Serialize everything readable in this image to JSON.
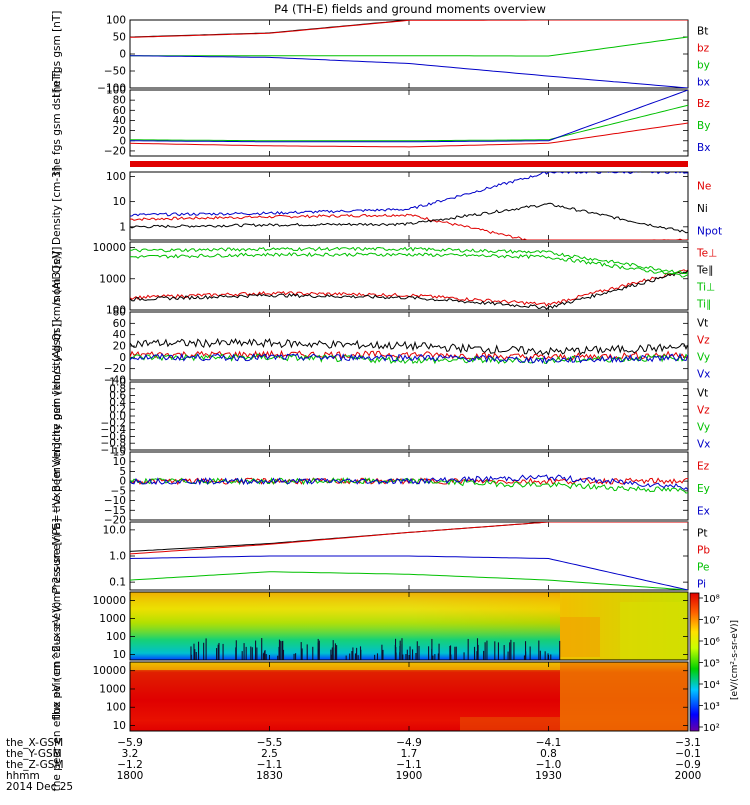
{
  "title": "P4 (TH-E) fields and ground moments overview",
  "colors": {
    "black": "#000000",
    "red": "#e00000",
    "green": "#00c000",
    "blue": "#0000c8",
    "white": "#ffffff"
  },
  "footer": {
    "row_labels": [
      "the_X-GSM",
      "the_Y-GSM",
      "the_Z-GSM",
      "hhmm",
      "2014 Dec 25"
    ],
    "columns": [
      {
        "x": "-5.9",
        "y": "3.2",
        "z": "-1.2",
        "t": "1800"
      },
      {
        "x": "-5.5",
        "y": "2.5",
        "z": "-1.1",
        "t": "1830"
      },
      {
        "x": "-4.9",
        "y": "1.7",
        "z": "-1.1",
        "t": "1900"
      },
      {
        "x": "-4.1",
        "y": "0.8",
        "z": "-1.0",
        "t": "1930"
      },
      {
        "x": "-3.1",
        "y": "-0.1",
        "z": "-0.9",
        "t": "2000"
      }
    ]
  },
  "colorbar": {
    "label": "[eV/(cm²-s-sr-eV)]",
    "ticks": [
      "10⁸",
      "10⁷",
      "10⁶",
      "10⁵",
      "10⁴",
      "10³",
      "10²"
    ]
  },
  "chart_data": [
    {
      "type": "line",
      "name": "fgs-gsm",
      "ylabel": "the fgs gsm [nT]",
      "ylim": [
        -100,
        100
      ],
      "yticks": [
        "100",
        "50",
        "0",
        "−50",
        "−100"
      ],
      "legend": [
        "Bt",
        "bz",
        "by",
        "bx"
      ],
      "x": [
        "18:00",
        "18:30",
        "19:00",
        "19:30",
        "20:00"
      ],
      "series": [
        {
          "name": "Bt",
          "values": [
            50,
            62,
            100,
            100,
            100
          ]
        },
        {
          "name": "bz",
          "values": [
            49,
            61,
            99,
            100,
            100
          ]
        },
        {
          "name": "by",
          "values": [
            -5,
            -5,
            -5,
            -6,
            50
          ]
        },
        {
          "name": "bx",
          "values": [
            -5,
            -10,
            -28,
            -65,
            -100
          ]
        }
      ]
    },
    {
      "type": "line",
      "name": "fgs-dsl",
      "ylabel": "the fgs gsm dsl [nT]",
      "ylim": [
        -30,
        100
      ],
      "yticks": [
        "100",
        "80",
        "60",
        "40",
        "20",
        "0",
        "−20"
      ],
      "legend": [
        "Bz",
        "By",
        "Bx"
      ],
      "x": [
        "18:00",
        "18:30",
        "19:00",
        "19:30",
        "20:00"
      ],
      "series": [
        {
          "name": "Bz",
          "values": [
            -5,
            -10,
            -12,
            -5,
            35
          ]
        },
        {
          "name": "By",
          "values": [
            2,
            0,
            0,
            2,
            70
          ]
        },
        {
          "name": "Bx",
          "values": [
            0,
            -2,
            -2,
            0,
            100
          ]
        }
      ]
    },
    {
      "type": "line",
      "name": "density",
      "ylabel": "Density [cm-3]",
      "ylim": [
        0.3,
        150
      ],
      "scale": "log",
      "yticks": [
        "100",
        "10",
        "1"
      ],
      "legend": [
        "Ne",
        "Ni",
        "Npot"
      ],
      "x": [
        "18:00",
        "18:30",
        "19:00",
        "19:30",
        "20:00"
      ],
      "series": [
        {
          "name": "Ne",
          "values": [
            2,
            2.5,
            3,
            0.2,
            0.3
          ]
        },
        {
          "name": "Ni",
          "values": [
            1,
            1.2,
            1.3,
            8,
            0.6
          ]
        },
        {
          "name": "Npot",
          "values": [
            3,
            3.5,
            5,
            150,
            150
          ]
        }
      ]
    },
    {
      "type": "line",
      "name": "temperature",
      "ylabel": "mom3 [eV]",
      "ylim": [
        100,
        15000
      ],
      "scale": "log",
      "yticks": [
        "10000",
        "1000",
        "100"
      ],
      "legend": [
        "Te⊥",
        "Te∥",
        "Ti⊥",
        "Ti∥"
      ],
      "x": [
        "18:00",
        "18:30",
        "19:00",
        "19:30",
        "20:00"
      ],
      "series": [
        {
          "name": "Te⊥",
          "values": [
            250,
            350,
            300,
            150,
            2000
          ]
        },
        {
          "name": "Te∥",
          "values": [
            220,
            300,
            250,
            120,
            1800
          ]
        },
        {
          "name": "Ti⊥",
          "values": [
            8000,
            9000,
            9000,
            7000,
            1500
          ]
        },
        {
          "name": "Ti∥",
          "values": [
            5000,
            6000,
            6000,
            5000,
            1200
          ]
        }
      ]
    },
    {
      "type": "line",
      "name": "peir-velocity",
      "ylabel": "the peir velocity gsm [km/s (All Qs)]",
      "ylim": [
        -40,
        80
      ],
      "yticks": [
        "80",
        "60",
        "40",
        "20",
        "0",
        "−20",
        "−40"
      ],
      "legend": [
        "Vt",
        "Vz",
        "Vy",
        "Vx"
      ],
      "x": [
        "18:00",
        "18:30",
        "19:00",
        "19:30",
        "20:00"
      ],
      "series": [
        {
          "name": "Vt",
          "values": [
            25,
            25,
            20,
            10,
            18
          ]
        },
        {
          "name": "Vz",
          "values": [
            5,
            5,
            5,
            0,
            5
          ]
        },
        {
          "name": "Vy",
          "values": [
            0,
            0,
            -5,
            -5,
            0
          ]
        },
        {
          "name": "Vx",
          "values": [
            0,
            0,
            0,
            -5,
            0
          ]
        }
      ]
    },
    {
      "type": "line",
      "name": "peer-velocity",
      "ylabel": "the peer velocity gsm [km/s (All Qs)]",
      "ylim": [
        -1,
        1
      ],
      "yticks": [
        "1.0",
        "0.8",
        "0.6",
        "0.4",
        "0.2",
        "0.0",
        "−0.2",
        "−0.4",
        "−0.6",
        "−0.8",
        "−1.0"
      ],
      "legend": [
        "Vt",
        "Vz",
        "Vy",
        "Vx"
      ],
      "x": [],
      "series": []
    },
    {
      "type": "line",
      "name": "efield",
      "ylabel": "E=−VxB [mV/m]",
      "ylim": [
        -20,
        15
      ],
      "yticks": [
        "15",
        "10",
        "5",
        "0",
        "−5",
        "−10",
        "−15",
        "−20"
      ],
      "legend": [
        "Ez",
        "Ey",
        "Ex"
      ],
      "x": [
        "18:00",
        "18:30",
        "19:00",
        "19:30",
        "20:00"
      ],
      "series": [
        {
          "name": "Ez",
          "values": [
            0,
            0,
            0,
            0,
            0
          ]
        },
        {
          "name": "Ey",
          "values": [
            0,
            0,
            0,
            -2,
            -5
          ]
        },
        {
          "name": "Ex",
          "values": [
            0,
            0,
            0,
            2,
            -3
          ]
        }
      ]
    },
    {
      "type": "line",
      "name": "pressure",
      "ylabel": "Pressure [nPa]",
      "ylim": [
        0.05,
        20
      ],
      "scale": "log",
      "yticks": [
        "10.0",
        "1.0",
        "0.1"
      ],
      "legend": [
        "Pt",
        "Pb",
        "Pe",
        "Pi"
      ],
      "x": [
        "18:00",
        "18:30",
        "19:00",
        "19:30",
        "20:00"
      ],
      "series": [
        {
          "name": "Pt",
          "values": [
            1.5,
            3,
            8,
            20,
            20
          ]
        },
        {
          "name": "Pb",
          "values": [
            1.2,
            2.8,
            8,
            20,
            20
          ]
        },
        {
          "name": "Pe",
          "values": [
            0.12,
            0.25,
            0.2,
            0.12,
            0.05
          ]
        },
        {
          "name": "Pi",
          "values": [
            0.8,
            1,
            1,
            0.8,
            0.05
          ]
        }
      ]
    },
    {
      "type": "heatmap",
      "name": "peir-spectrogram",
      "ylabel": "the peir en eflux eV (cm^2-s-sr-eV)",
      "ylim": [
        5,
        30000
      ],
      "scale": "log",
      "yticks": [
        "10000",
        "1000",
        "100",
        "10"
      ]
    },
    {
      "type": "heatmap",
      "name": "peer-spectrogram",
      "ylabel": "the peer en eflux eV (cm^2-s-sr-eV)",
      "ylim": [
        5,
        30000
      ],
      "scale": "log",
      "yticks": [
        "10000",
        "1000",
        "100",
        "10"
      ]
    }
  ]
}
